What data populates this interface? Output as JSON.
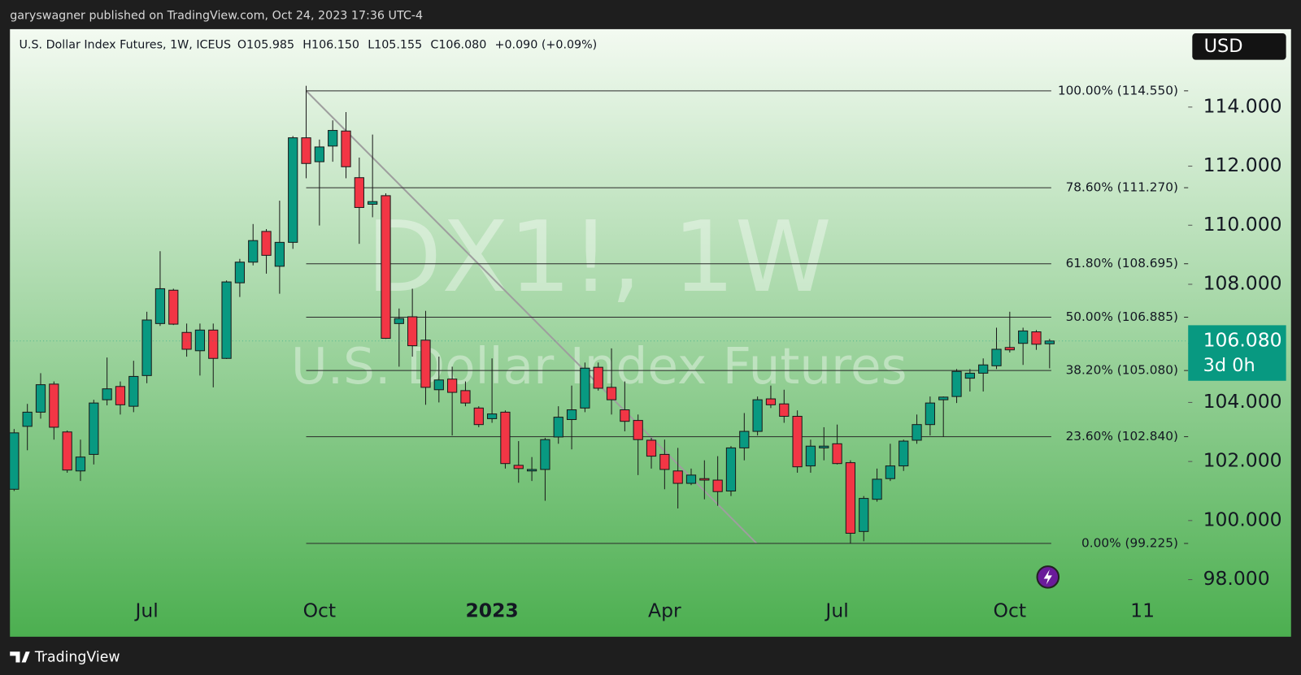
{
  "publisher": "garyswagner published on TradingView.com, Oct 24, 2023 17:36 UTC-4",
  "brand": "TradingView",
  "chart_data": {
    "type": "candlestick",
    "title": "U.S. Dollar Index Futures, 1W, ICEUS",
    "legend_values": [
      "O105.985",
      "H106.150",
      "L105.155",
      "C106.080"
    ],
    "change": "+0.090 (+0.09%)",
    "watermark": "DX1!, 1W",
    "watermark_subtitle": "U.S. Dollar Index Futures",
    "currency": "USD",
    "last_price_label": "106.080",
    "countdown": "3d 0h",
    "up_color": "#089981",
    "down_color": "#f23645",
    "grid": false,
    "categories": [
      null,
      null,
      null,
      null,
      null,
      null,
      null,
      null,
      null,
      null,
      "Jul",
      null,
      null,
      null,
      null,
      null,
      null,
      null,
      null,
      null,
      null,
      null,
      null,
      "Oct",
      null,
      null,
      null,
      null,
      null,
      null,
      null,
      null,
      null,
      null,
      null,
      null,
      "2023",
      null,
      null,
      null,
      null,
      null,
      null,
      null,
      null,
      null,
      null,
      null,
      null,
      "Apr",
      null,
      null,
      null,
      null,
      null,
      null,
      null,
      null,
      null,
      null,
      null,
      null,
      "Jul",
      null,
      null,
      null,
      null,
      null,
      null,
      null,
      null,
      null,
      null,
      null,
      null,
      "Oct",
      null,
      null,
      null,
      null,
      null,
      null,
      null,
      null,
      null,
      "11",
      null,
      null,
      null
    ],
    "open": [
      101.06,
      103.19,
      103.67,
      104.62,
      103.0,
      101.68,
      102.24,
      104.09,
      104.54,
      103.87,
      104.91,
      106.67,
      107.8,
      106.37,
      105.75,
      106.45,
      105.49,
      108.05,
      108.75,
      109.79,
      108.61,
      109.42,
      112.96,
      112.15,
      112.68,
      113.19,
      111.61,
      110.71,
      111.0,
      106.67,
      106.9,
      106.11,
      104.43,
      104.79,
      104.4,
      103.81,
      103.45,
      103.67,
      101.87,
      101.68,
      101.73,
      102.83,
      103.42,
      103.81,
      105.19,
      104.51,
      103.75,
      103.39,
      102.72,
      102.24,
      101.68,
      101.26,
      101.42,
      101.37,
      101.0,
      102.46,
      103.02,
      104.12,
      103.95,
      103.53,
      101.85,
      102.46,
      102.6,
      101.96,
      99.63,
      100.72,
      101.42,
      101.85,
      102.72,
      103.25,
      104.09,
      104.2,
      104.82,
      104.99,
      105.24,
      105.86,
      106.0,
      106.39,
      105.985,
      null,
      null,
      null,
      null,
      null,
      null,
      null,
      null,
      null,
      null
    ],
    "high": [
      103.1,
      103.95,
      104.99,
      104.71,
      103.05,
      102.74,
      104.09,
      105.52,
      104.71,
      105.41,
      107.07,
      109.12,
      107.85,
      106.67,
      106.67,
      106.67,
      108.13,
      108.86,
      110.04,
      109.87,
      110.83,
      113.02,
      114.72,
      112.9,
      113.55,
      113.83,
      112.29,
      113.07,
      111.08,
      107.18,
      107.85,
      107.1,
      105.55,
      105.21,
      104.71,
      103.87,
      105.49,
      103.73,
      102.69,
      102.15,
      102.8,
      103.87,
      104.57,
      105.35,
      105.35,
      105.83,
      104.71,
      103.59,
      102.8,
      102.74,
      102.46,
      101.76,
      102.04,
      102.18,
      102.52,
      103.64,
      104.2,
      104.57,
      104.43,
      103.73,
      102.74,
      103.16,
      103.25,
      102.04,
      100.83,
      101.76,
      102.6,
      102.74,
      103.59,
      104.2,
      104.2,
      105.13,
      105.13,
      105.49,
      106.53,
      107.07,
      106.53,
      106.45,
      106.15,
      null,
      null,
      null,
      null,
      null,
      null,
      null,
      null,
      null,
      null
    ],
    "low": [
      101.0,
      102.38,
      103.45,
      102.74,
      101.62,
      101.34,
      101.9,
      103.9,
      103.59,
      103.67,
      104.65,
      106.59,
      106.62,
      105.55,
      104.91,
      104.51,
      105.47,
      107.57,
      108.64,
      108.36,
      107.68,
      109.2,
      111.59,
      109.99,
      112.15,
      111.59,
      109.37,
      110.27,
      106.15,
      105.21,
      105.55,
      103.92,
      104.0,
      102.88,
      103.87,
      103.16,
      103.31,
      101.76,
      101.28,
      101.34,
      100.67,
      102.6,
      102.41,
      103.67,
      104.4,
      103.59,
      103.02,
      101.54,
      101.76,
      101.06,
      100.41,
      101.2,
      100.72,
      100.5,
      100.83,
      102.04,
      102.88,
      103.81,
      103.31,
      101.62,
      101.62,
      102.04,
      101.9,
      99.225,
      99.3,
      100.64,
      101.34,
      101.68,
      102.6,
      102.88,
      102.83,
      103.98,
      104.37,
      104.37,
      105.13,
      105.69,
      105.27,
      105.78,
      105.155,
      null,
      null,
      null,
      null,
      null,
      null,
      null,
      null,
      null,
      null
    ],
    "close": [
      102.97,
      103.67,
      104.6,
      103.16,
      101.71,
      102.15,
      103.98,
      104.46,
      103.92,
      104.88,
      106.79,
      107.85,
      106.65,
      105.8,
      106.45,
      105.49,
      108.08,
      108.75,
      109.48,
      108.98,
      109.42,
      112.96,
      112.09,
      112.65,
      113.21,
      111.98,
      110.6,
      110.8,
      106.17,
      106.84,
      105.92,
      104.51,
      104.76,
      104.34,
      103.98,
      103.25,
      103.61,
      101.93,
      101.76,
      101.73,
      102.74,
      103.5,
      103.75,
      105.16,
      104.48,
      104.09,
      103.36,
      102.74,
      102.18,
      101.73,
      101.26,
      101.54,
      101.37,
      100.98,
      102.46,
      103.02,
      104.09,
      103.92,
      103.53,
      101.82,
      102.52,
      102.52,
      101.93,
      99.57,
      100.75,
      101.4,
      101.85,
      102.69,
      103.25,
      103.98,
      104.18,
      105.05,
      104.99,
      105.27,
      105.8,
      105.78,
      106.42,
      105.97,
      106.08,
      null,
      null,
      null,
      null,
      null,
      null,
      null,
      null,
      null,
      null
    ],
    "ylim": [
      97.47,
      116.61
    ],
    "yticks": [
      {
        "value": 98,
        "label": "98.000"
      },
      {
        "value": 100,
        "label": "100.000"
      },
      {
        "value": 102,
        "label": "102.000"
      },
      {
        "value": 104,
        "label": "104.000"
      },
      {
        "value": 106,
        "label": "106.000"
      },
      {
        "value": 108,
        "label": "108.000"
      },
      {
        "value": 110,
        "label": "110.000"
      },
      {
        "value": 112,
        "label": "112.000"
      },
      {
        "value": 114,
        "label": "114.000"
      }
    ],
    "fib_levels": [
      {
        "value": 114.55,
        "label": "100.00% (114.550)"
      },
      {
        "value": 111.27,
        "label": "78.60% (111.270)"
      },
      {
        "value": 108.695,
        "label": "61.80% (108.695)"
      },
      {
        "value": 106.885,
        "label": "50.00% (106.885)"
      },
      {
        "value": 105.08,
        "label": "38.20% (105.080)"
      },
      {
        "value": 102.84,
        "label": "23.60% (102.840)"
      },
      {
        "value": 99.225,
        "label": "0.00% (99.225)"
      }
    ]
  }
}
